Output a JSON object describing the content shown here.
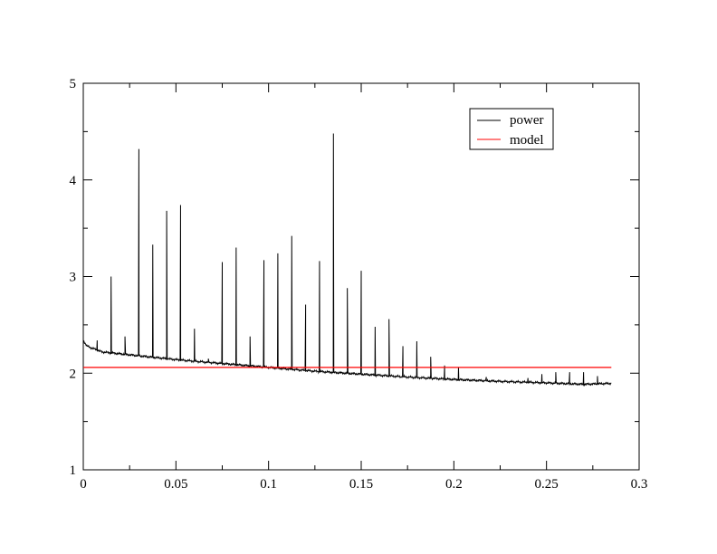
{
  "chart_data": {
    "type": "line",
    "title": "",
    "xlabel": "",
    "ylabel": "",
    "xlim": [
      0,
      0.3
    ],
    "ylim": [
      1,
      5
    ],
    "x_major_ticks": [
      0,
      0.05,
      0.1,
      0.15,
      0.2,
      0.25,
      0.3
    ],
    "x_tick_labels": [
      "0",
      "0.05",
      "0.1",
      "0.15",
      "0.2",
      "0.25",
      "0.3"
    ],
    "y_major_ticks": [
      1,
      2,
      3,
      4,
      5
    ],
    "y_tick_labels": [
      "1",
      "2",
      "3",
      "4",
      "5"
    ],
    "grid": false,
    "legend_position": "top-right",
    "series": [
      {
        "name": "power",
        "color": "#000000",
        "baseline": {
          "x": [
            0,
            0.002,
            0.01,
            0.03,
            0.05,
            0.075,
            0.1,
            0.125,
            0.15,
            0.175,
            0.2,
            0.225,
            0.25,
            0.27,
            0.285
          ],
          "y": [
            2.34,
            2.28,
            2.22,
            2.18,
            2.14,
            2.1,
            2.06,
            2.02,
            1.99,
            1.96,
            1.935,
            1.915,
            1.9,
            1.885,
            1.895
          ]
        },
        "peaks": {
          "x": [
            0.0075,
            0.015,
            0.0225,
            0.03,
            0.0375,
            0.045,
            0.0525,
            0.06,
            0.0675,
            0.075,
            0.0825,
            0.09,
            0.0975,
            0.105,
            0.1125,
            0.12,
            0.1275,
            0.135,
            0.1425,
            0.15,
            0.1575,
            0.165,
            0.1725,
            0.18,
            0.1875,
            0.195,
            0.2025,
            0.2175,
            0.24,
            0.2475,
            0.255,
            0.2625,
            0.27,
            0.2775
          ],
          "y": [
            2.34,
            3.0,
            2.38,
            4.32,
            3.33,
            3.68,
            3.74,
            2.46,
            2.15,
            3.15,
            3.3,
            2.38,
            3.17,
            3.24,
            3.42,
            2.71,
            3.16,
            4.48,
            2.88,
            3.06,
            2.48,
            2.56,
            2.28,
            2.33,
            2.17,
            2.08,
            2.06,
            1.96,
            1.95,
            1.99,
            2.01,
            2.01,
            2.01,
            1.97
          ]
        }
      },
      {
        "name": "model",
        "color": "#ff0000",
        "x": [
          0,
          0.285
        ],
        "y": [
          2.06,
          2.06
        ]
      }
    ]
  }
}
